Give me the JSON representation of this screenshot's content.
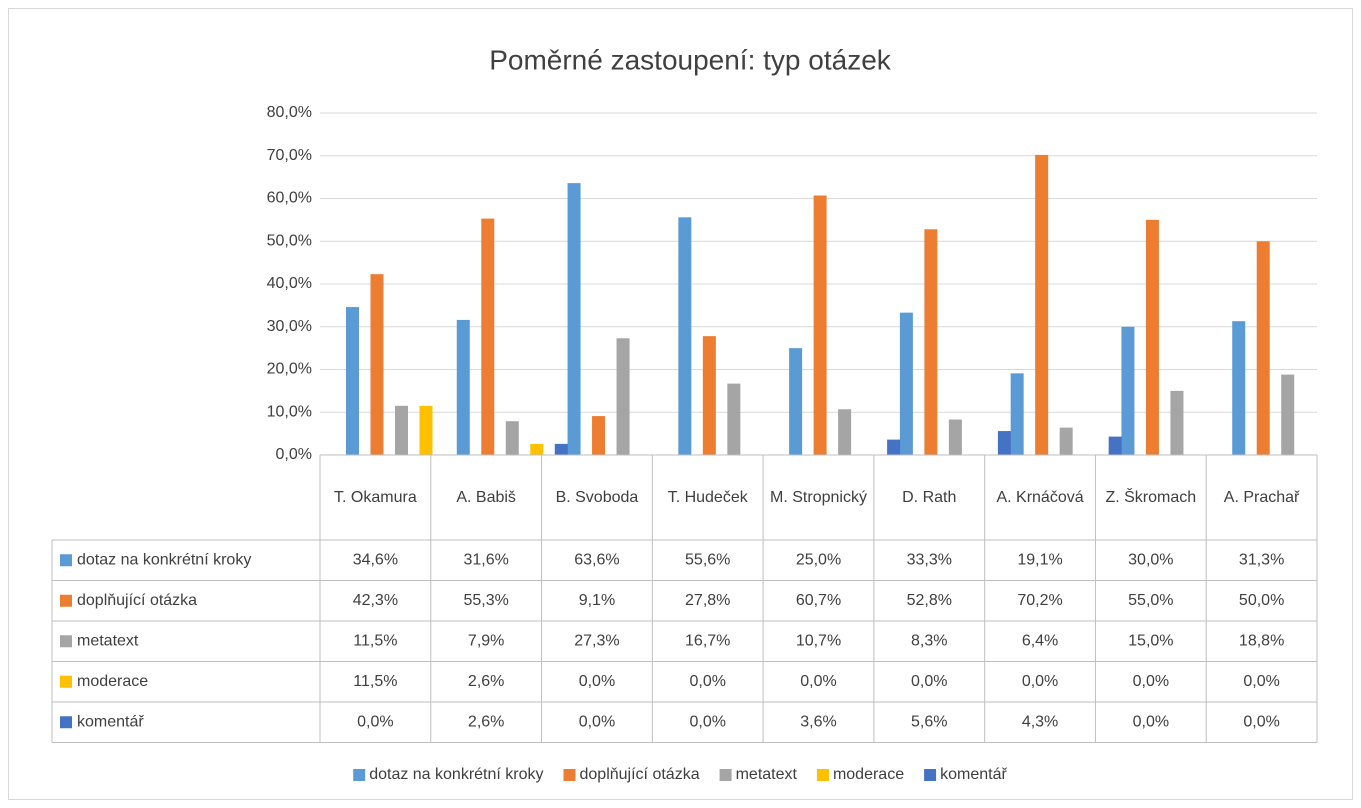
{
  "chart_data": {
    "type": "bar",
    "title": "Poměrné zastoupení: typ otázek",
    "categories": [
      "T. Okamura",
      "A. Babiš",
      "B. Svoboda",
      "T. Hudeček",
      "M. Stropnický",
      "D. Rath",
      "A. Krnáčová",
      "Z. Škromach",
      "A. Prachař"
    ],
    "series": [
      {
        "name": "dotaz na konkrétní kroky",
        "color": "#5b9bd5",
        "values": [
          34.6,
          31.6,
          63.6,
          55.6,
          25.0,
          33.3,
          19.1,
          30.0,
          31.3
        ],
        "value_labels": [
          "34,6%",
          "31,6%",
          "63,6%",
          "55,6%",
          "25,0%",
          "33,3%",
          "19,1%",
          "30,0%",
          "31,3%"
        ]
      },
      {
        "name": "doplňující otázka",
        "color": "#ed7d31",
        "values": [
          42.3,
          55.3,
          9.1,
          27.8,
          60.7,
          52.8,
          70.2,
          55.0,
          50.0
        ],
        "value_labels": [
          "42,3%",
          "55,3%",
          "9,1%",
          "27,8%",
          "60,7%",
          "52,8%",
          "70,2%",
          "55,0%",
          "50,0%"
        ]
      },
      {
        "name": "metatext",
        "color": "#a5a5a5",
        "values": [
          11.5,
          7.9,
          27.3,
          16.7,
          10.7,
          8.3,
          6.4,
          15.0,
          18.8
        ],
        "value_labels": [
          "11,5%",
          "7,9%",
          "27,3%",
          "16,7%",
          "10,7%",
          "8,3%",
          "6,4%",
          "15,0%",
          "18,8%"
        ]
      },
      {
        "name": "moderace",
        "color": "#ffc000",
        "values": [
          11.5,
          2.6,
          0.0,
          0.0,
          0.0,
          0.0,
          0.0,
          0.0,
          0.0
        ],
        "value_labels": [
          "11,5%",
          "2,6%",
          "0,0%",
          "0,0%",
          "0,0%",
          "0,0%",
          "0,0%",
          "0,0%",
          "0,0%"
        ]
      },
      {
        "name": "komentář",
        "color": "#4472c4",
        "values": [
          0.0,
          2.6,
          0.0,
          0.0,
          3.6,
          5.6,
          4.3,
          0.0,
          0.0
        ],
        "value_labels": [
          "0,0%",
          "2,6%",
          "0,0%",
          "0,0%",
          "3,6%",
          "5,6%",
          "4,3%",
          "0,0%",
          "0,0%"
        ]
      }
    ],
    "ylim": [
      0,
      80
    ],
    "yticks": [
      {
        "value": 0,
        "label": "0,0%"
      },
      {
        "value": 10,
        "label": "10,0%"
      },
      {
        "value": 20,
        "label": "20,0%"
      },
      {
        "value": 30,
        "label": "30,0%"
      },
      {
        "value": 40,
        "label": "40,0%"
      },
      {
        "value": 50,
        "label": "50,0%"
      },
      {
        "value": 60,
        "label": "60,0%"
      },
      {
        "value": 70,
        "label": "70,0%"
      },
      {
        "value": 80,
        "label": "80,0%"
      }
    ],
    "grid": true,
    "legend": "bottom"
  }
}
